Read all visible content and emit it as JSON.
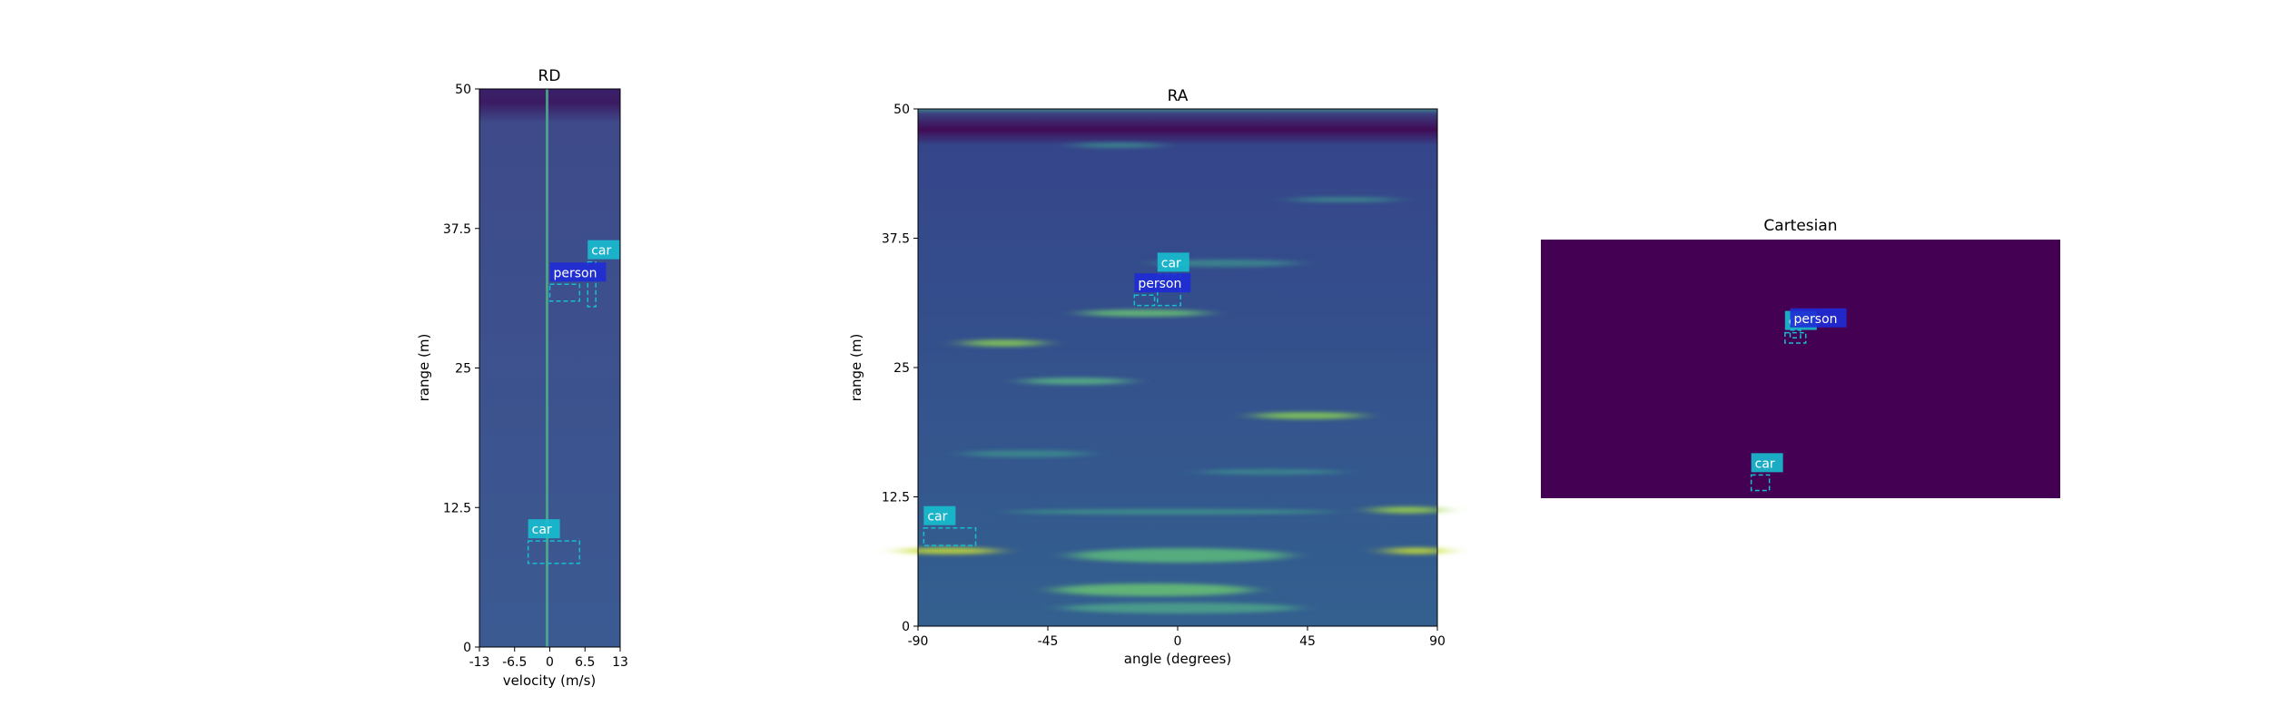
{
  "colors": {
    "car": "#17becf",
    "person": "#1f2bd6",
    "heatmap_low": "#440154",
    "heatmap_mid": "#2f5f8f",
    "heatmap_high": "#dde318"
  },
  "chart_data": [
    {
      "type": "heatmap",
      "title": "RD",
      "xlabel": "velocity (m/s)",
      "ylabel": "range (m)",
      "xlim": [
        -13,
        13
      ],
      "ylim": [
        0,
        50
      ],
      "xticks": [
        "-13",
        "-6.5",
        "0",
        "6.5",
        "13"
      ],
      "xtick_values": [
        -13,
        -6.5,
        0,
        6.5,
        13
      ],
      "yticks": [
        "0",
        "12.5",
        "25",
        "37.5",
        "50"
      ],
      "ytick_values": [
        0,
        12.5,
        25,
        37.5,
        50
      ],
      "boxes": [
        {
          "label": "car",
          "x0": 7,
          "x1": 8.5,
          "y0": 30.5,
          "y1": 34.5
        },
        {
          "label": "person",
          "x0": 0,
          "x1": 5.5,
          "y0": 31,
          "y1": 32.5
        },
        {
          "label": "car",
          "x0": -4,
          "x1": 5.5,
          "y0": 7.5,
          "y1": 9.5
        }
      ]
    },
    {
      "type": "heatmap",
      "title": "RA",
      "xlabel": "angle (degrees)",
      "ylabel": "range (m)",
      "xlim": [
        -90,
        90
      ],
      "ylim": [
        0,
        50
      ],
      "xticks": [
        "-90",
        "-45",
        "0",
        "45",
        "90"
      ],
      "xtick_values": [
        -90,
        -45,
        0,
        45,
        90
      ],
      "yticks": [
        "0",
        "12.5",
        "25",
        "37.5",
        "50"
      ],
      "ytick_values": [
        0,
        12.5,
        25,
        37.5,
        50
      ],
      "boxes": [
        {
          "label": "car",
          "x0": -7,
          "x1": 1,
          "y0": 31,
          "y1": 34
        },
        {
          "label": "person",
          "x0": -15,
          "x1": -8,
          "y0": 31,
          "y1": 32
        },
        {
          "label": "car",
          "x0": -88,
          "x1": -70,
          "y0": 7.8,
          "y1": 9.5
        }
      ]
    },
    {
      "type": "heatmap",
      "title": "Cartesian",
      "boxes": [
        {
          "label": "car",
          "x0": 0.47,
          "x1": 0.51,
          "y0": 0.6,
          "y1": 0.64
        },
        {
          "label": "person",
          "x0": 0.48,
          "x1": 0.5,
          "y0": 0.62,
          "y1": 0.65
        },
        {
          "label": "car",
          "x0": 0.405,
          "x1": 0.44,
          "y0": 0.03,
          "y1": 0.09
        }
      ]
    }
  ]
}
